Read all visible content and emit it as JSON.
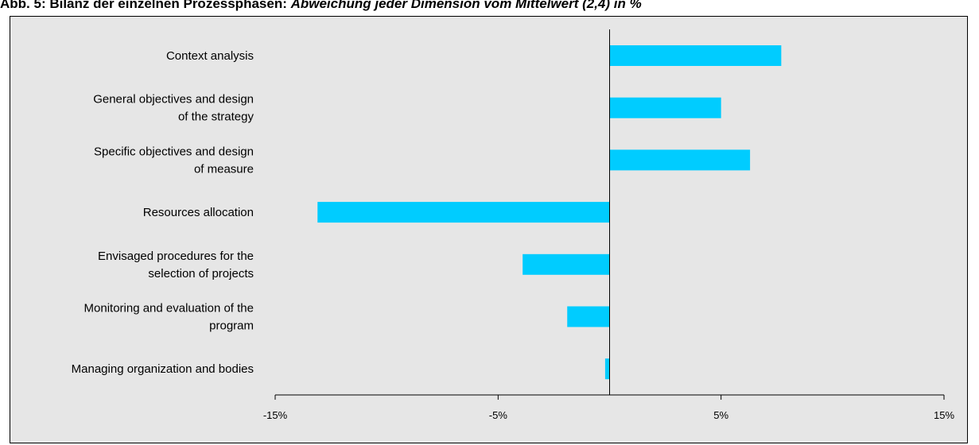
{
  "title": {
    "bold_part": "Abb. 5: Bilanz der einzelnen Prozessphasen: ",
    "italic_part": "Abweichung jeder Dimension vom Mittelwert (2,4) in %"
  },
  "colors": {
    "bar": "#00ccff",
    "background": "#e6e6e6",
    "axis": "#000000"
  },
  "chart_data": {
    "type": "bar",
    "orientation": "horizontal",
    "categories": [
      [
        "Context analysis"
      ],
      [
        "General objectives and design",
        "of the strategy"
      ],
      [
        "Specific objectives and design",
        "of measure"
      ],
      [
        "Resources allocation"
      ],
      [
        "Envisaged procedures for the",
        "selection of projects"
      ],
      [
        "Monitoring and evaluation of the",
        "program"
      ],
      [
        "Managing organization and bodies"
      ]
    ],
    "values": [
      7.7,
      5.0,
      6.3,
      -13.1,
      -3.9,
      -1.9,
      -0.2
    ],
    "xlim": [
      -15,
      15
    ],
    "xticks": [
      -15,
      -5,
      5,
      15
    ],
    "xtick_labels": [
      "-15%",
      "-5%",
      "5%",
      "15%"
    ],
    "grid": false
  }
}
